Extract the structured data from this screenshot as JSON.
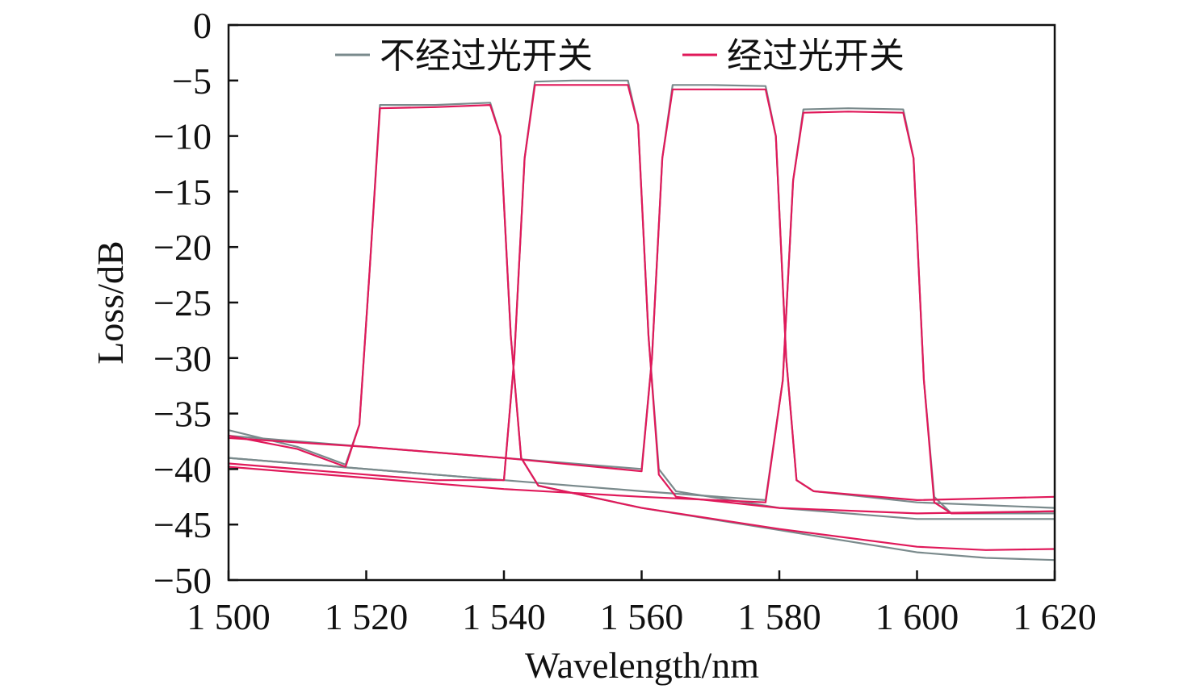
{
  "chart_data": {
    "type": "line",
    "xlabel": "Wavelength/nm",
    "ylabel": "Loss/dB",
    "xlim": [
      1500,
      1620
    ],
    "ylim": [
      -50,
      0
    ],
    "x_ticks": [
      1500,
      1520,
      1540,
      1560,
      1580,
      1600,
      1620
    ],
    "x_tick_labels": [
      "1 500",
      "1 520",
      "1 540",
      "1 560",
      "1 580",
      "1 600",
      "1 620"
    ],
    "y_ticks": [
      0,
      -5,
      -10,
      -15,
      -20,
      -25,
      -30,
      -35,
      -40,
      -45,
      -50
    ],
    "y_tick_labels": [
      "0",
      "−5",
      "−10",
      "−15",
      "−20",
      "−25",
      "−30",
      "−35",
      "−40",
      "−45",
      "−50"
    ],
    "grid": false,
    "legend_position": "top",
    "legend": [
      "不经过光开关",
      "经过光开关"
    ],
    "colors": {
      "without_switch": "#7a8a8c",
      "with_switch": "#e0195a",
      "axis": "#111111"
    },
    "series": [
      {
        "name": "不经过光开关",
        "channels": [
          {
            "x": [
              1500,
              1510,
              1517,
              1519,
              1520.5,
              1522,
              1530,
              1538,
              1539.5,
              1541,
              1542.5,
              1545,
              1560,
              1580,
              1600,
              1610,
              1620
            ],
            "y": [
              -36.5,
              -38.0,
              -39.6,
              -36.0,
              -22.0,
              -7.2,
              -7.2,
              -7.0,
              -10.0,
              -28.0,
              -39.0,
              -41.5,
              -43.5,
              -45.5,
              -47.5,
              -48.0,
              -48.2
            ]
          },
          {
            "x": [
              1500,
              1510,
              1520,
              1530,
              1540,
              1541.5,
              1543,
              1544.5,
              1550,
              1558,
              1559.5,
              1561,
              1562.5,
              1565,
              1580,
              1600,
              1620
            ],
            "y": [
              -39.0,
              -39.5,
              -40.0,
              -40.5,
              -41.0,
              -30.0,
              -12.0,
              -5.1,
              -5.0,
              -5.0,
              -9.0,
              -28.0,
              -40.0,
              -42.0,
              -43.5,
              -44.5,
              -44.5
            ]
          },
          {
            "x": [
              1500,
              1520,
              1540,
              1560,
              1561.5,
              1563,
              1564.5,
              1570,
              1578,
              1579.5,
              1581,
              1582.5,
              1585,
              1600,
              1620
            ],
            "y": [
              -37.0,
              -38.0,
              -39.0,
              -40.0,
              -30.0,
              -12.0,
              -5.4,
              -5.4,
              -5.5,
              -10.0,
              -30.0,
              -41.0,
              -42.0,
              -43.0,
              -43.5
            ]
          },
          {
            "x": [
              1500,
              1520,
              1540,
              1560,
              1578,
              1580.5,
              1582,
              1583.5,
              1590,
              1598,
              1599.5,
              1601,
              1602.5,
              1605,
              1620
            ],
            "y": [
              -39.0,
              -40.0,
              -41.0,
              -42.0,
              -42.8,
              -32.0,
              -14.0,
              -7.6,
              -7.5,
              -7.6,
              -12.0,
              -32.0,
              -42.5,
              -44.0,
              -44.0
            ]
          }
        ]
      },
      {
        "name": "经过光开关",
        "channels": [
          {
            "x": [
              1500,
              1510,
              1517,
              1519,
              1520.5,
              1522,
              1530,
              1538,
              1539.5,
              1541,
              1542.5,
              1545,
              1560,
              1580,
              1600,
              1610,
              1620
            ],
            "y": [
              -37.0,
              -38.2,
              -39.8,
              -36.0,
              -22.0,
              -7.5,
              -7.4,
              -7.2,
              -10.0,
              -28.0,
              -39.0,
              -41.5,
              -43.5,
              -45.4,
              -47.0,
              -47.3,
              -47.2
            ]
          },
          {
            "x": [
              1500,
              1510,
              1520,
              1530,
              1540,
              1541.5,
              1543,
              1544.5,
              1550,
              1558,
              1559.5,
              1561,
              1562.5,
              1565,
              1580,
              1600,
              1620
            ],
            "y": [
              -39.5,
              -40.0,
              -40.5,
              -41.0,
              -41.0,
              -30.0,
              -12.0,
              -5.4,
              -5.4,
              -5.4,
              -9.0,
              -28.0,
              -40.5,
              -42.5,
              -43.5,
              -44.0,
              -43.8
            ]
          },
          {
            "x": [
              1500,
              1520,
              1540,
              1560,
              1561.5,
              1563,
              1564.5,
              1570,
              1578,
              1579.5,
              1581,
              1582.5,
              1585,
              1600,
              1620
            ],
            "y": [
              -37.2,
              -38.0,
              -39.0,
              -40.2,
              -30.0,
              -12.0,
              -5.8,
              -5.8,
              -5.8,
              -10.0,
              -30.0,
              -41.0,
              -42.0,
              -42.8,
              -42.5
            ]
          },
          {
            "x": [
              1500,
              1520,
              1540,
              1560,
              1578,
              1580.5,
              1582,
              1583.5,
              1590,
              1598,
              1599.5,
              1601,
              1602.5,
              1605,
              1620
            ],
            "y": [
              -39.8,
              -40.8,
              -41.8,
              -42.5,
              -43.0,
              -32.0,
              -14.0,
              -7.9,
              -7.8,
              -7.9,
              -12.0,
              -32.0,
              -43.0,
              -44.0,
              -43.8
            ]
          }
        ]
      }
    ]
  }
}
